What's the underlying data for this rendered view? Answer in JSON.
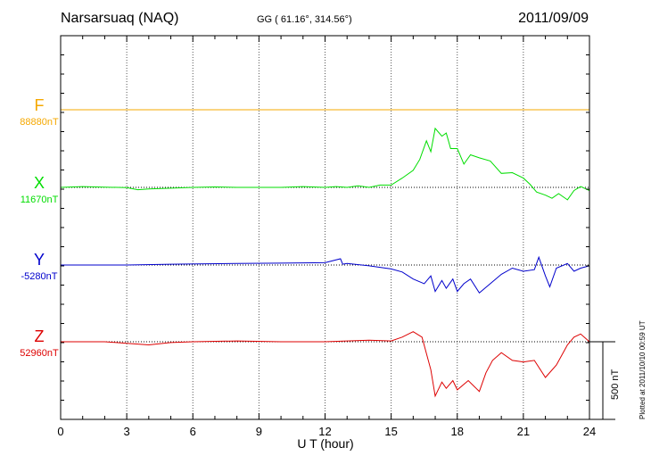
{
  "header": {
    "station": "Narsarsuaq (NAQ)",
    "coords": "GG ( 61.16°, 314.56°)",
    "date": "2011/09/09"
  },
  "footer": {
    "xlabel": "U T (hour)",
    "plotted": "Plotted at 2011/10/10 00:59 UT",
    "scale_label": "500 nT"
  },
  "colors": {
    "F": "#f5a800",
    "X": "#00dd00",
    "Y": "#0000cc",
    "Z": "#dd0000"
  },
  "chart_data": {
    "type": "line",
    "x_ticks": [
      0,
      3,
      6,
      9,
      12,
      15,
      18,
      21,
      24
    ],
    "xlim": [
      0,
      24
    ],
    "xlabel": "U T (hour)",
    "scale_bar_nT": 500,
    "components": [
      {
        "name": "F",
        "baseline_label": "88880nT",
        "baseline_nT": 88880,
        "points": [
          [
            0,
            0
          ],
          [
            24,
            0
          ]
        ]
      },
      {
        "name": "X",
        "baseline_label": "11670nT",
        "baseline_nT": 11670,
        "points": [
          [
            0,
            0
          ],
          [
            1,
            5
          ],
          [
            2,
            2
          ],
          [
            3,
            -2
          ],
          [
            3.5,
            -15
          ],
          [
            4,
            -10
          ],
          [
            5,
            -5
          ],
          [
            6,
            0
          ],
          [
            7,
            3
          ],
          [
            8,
            0
          ],
          [
            9,
            0
          ],
          [
            10,
            0
          ],
          [
            11,
            5
          ],
          [
            12,
            0
          ],
          [
            12.5,
            5
          ],
          [
            13,
            0
          ],
          [
            13.5,
            10
          ],
          [
            14,
            0
          ],
          [
            14.5,
            15
          ],
          [
            15,
            15
          ],
          [
            15.5,
            60
          ],
          [
            16,
            110
          ],
          [
            16.3,
            180
          ],
          [
            16.6,
            300
          ],
          [
            16.8,
            230
          ],
          [
            17,
            380
          ],
          [
            17.3,
            330
          ],
          [
            17.5,
            350
          ],
          [
            17.7,
            250
          ],
          [
            18,
            250
          ],
          [
            18.3,
            150
          ],
          [
            18.6,
            210
          ],
          [
            19,
            190
          ],
          [
            19.5,
            170
          ],
          [
            20,
            90
          ],
          [
            20.5,
            95
          ],
          [
            21,
            60
          ],
          [
            21.3,
            20
          ],
          [
            21.6,
            -30
          ],
          [
            22,
            -50
          ],
          [
            22.3,
            -70
          ],
          [
            22.6,
            -40
          ],
          [
            23,
            -80
          ],
          [
            23.3,
            -20
          ],
          [
            23.6,
            5
          ],
          [
            24,
            -20
          ]
        ]
      },
      {
        "name": "Y",
        "baseline_label": "-5280nT",
        "baseline_nT": -5280,
        "points": [
          [
            0,
            0
          ],
          [
            3,
            0
          ],
          [
            5,
            5
          ],
          [
            8,
            10
          ],
          [
            10,
            12
          ],
          [
            12,
            15
          ],
          [
            12.7,
            40
          ],
          [
            12.8,
            5
          ],
          [
            13,
            10
          ],
          [
            14,
            -5
          ],
          [
            15,
            -25
          ],
          [
            15.5,
            -45
          ],
          [
            16,
            -90
          ],
          [
            16.5,
            -120
          ],
          [
            16.8,
            -70
          ],
          [
            17,
            -170
          ],
          [
            17.3,
            -100
          ],
          [
            17.5,
            -150
          ],
          [
            17.8,
            -90
          ],
          [
            18,
            -170
          ],
          [
            18.3,
            -120
          ],
          [
            18.6,
            -90
          ],
          [
            19,
            -180
          ],
          [
            19.5,
            -120
          ],
          [
            20,
            -60
          ],
          [
            20.5,
            -20
          ],
          [
            21,
            -40
          ],
          [
            21.5,
            -30
          ],
          [
            21.7,
            50
          ],
          [
            22,
            -70
          ],
          [
            22.2,
            -140
          ],
          [
            22.5,
            -20
          ],
          [
            23,
            10
          ],
          [
            23.3,
            -40
          ],
          [
            23.6,
            -20
          ],
          [
            24,
            -5
          ]
        ]
      },
      {
        "name": "Z",
        "baseline_label": "52960nT",
        "baseline_nT": 52960,
        "points": [
          [
            0,
            0
          ],
          [
            2,
            0
          ],
          [
            3,
            -10
          ],
          [
            4,
            -20
          ],
          [
            5,
            -5
          ],
          [
            6,
            0
          ],
          [
            8,
            5
          ],
          [
            10,
            0
          ],
          [
            12,
            0
          ],
          [
            13,
            5
          ],
          [
            14,
            10
          ],
          [
            15,
            5
          ],
          [
            15.5,
            30
          ],
          [
            16,
            65
          ],
          [
            16.4,
            30
          ],
          [
            16.8,
            -180
          ],
          [
            17,
            -350
          ],
          [
            17.3,
            -260
          ],
          [
            17.5,
            -300
          ],
          [
            17.8,
            -250
          ],
          [
            18,
            -310
          ],
          [
            18.5,
            -250
          ],
          [
            19,
            -320
          ],
          [
            19.3,
            -200
          ],
          [
            19.6,
            -120
          ],
          [
            20,
            -70
          ],
          [
            20.5,
            -120
          ],
          [
            21,
            -130
          ],
          [
            21.5,
            -120
          ],
          [
            22,
            -230
          ],
          [
            22.5,
            -150
          ],
          [
            23,
            -20
          ],
          [
            23.3,
            30
          ],
          [
            23.6,
            50
          ],
          [
            24,
            0
          ]
        ]
      }
    ]
  }
}
